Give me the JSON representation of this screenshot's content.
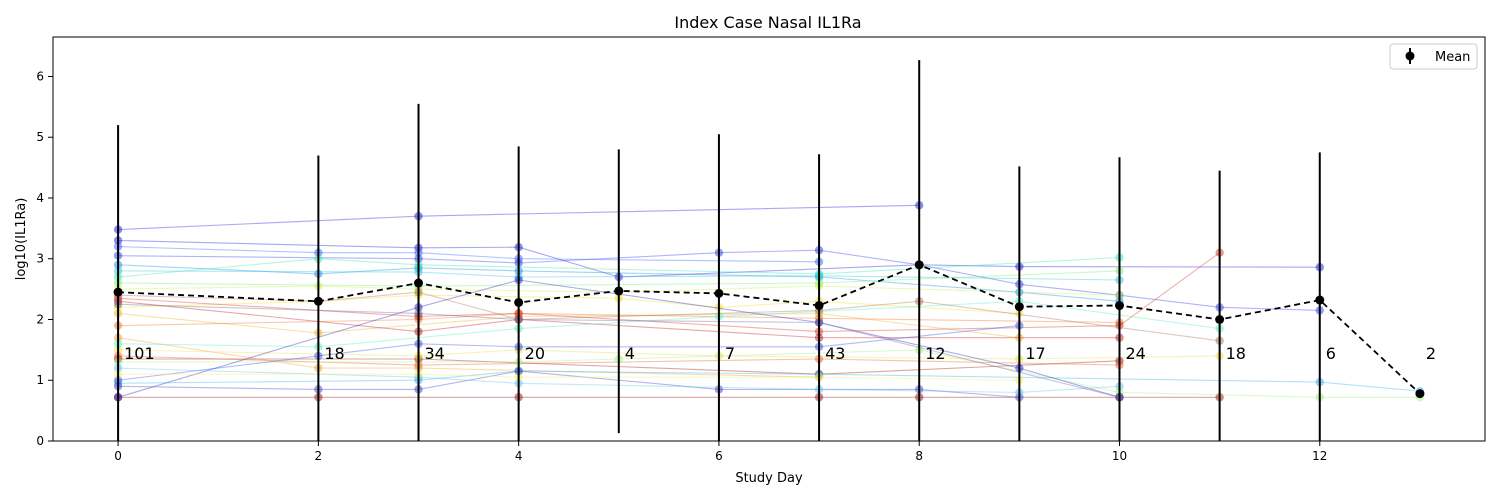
{
  "chart_data": {
    "type": "line",
    "title": "Index Case Nasal IL1Ra",
    "xlabel": "Study Day",
    "ylabel": "log10(IL1Ra)",
    "xlim": [
      -0.65,
      13.65
    ],
    "ylim": [
      0,
      6.65
    ],
    "x_ticks": [
      0,
      2,
      4,
      6,
      8,
      10,
      12
    ],
    "y_ticks": [
      0,
      1,
      2,
      3,
      4,
      5,
      6
    ],
    "grid": false,
    "legend": {
      "placement": "top-right",
      "entries": [
        "Mean"
      ]
    },
    "mean_series": {
      "name": "Mean",
      "color": "#000000",
      "line_style": "dashed",
      "points": [
        {
          "x": 0,
          "y": 2.45,
          "lo": 0.0,
          "hi": 5.2,
          "n": "101"
        },
        {
          "x": 2,
          "y": 2.3,
          "lo": 0.0,
          "hi": 4.7,
          "n": "18"
        },
        {
          "x": 3,
          "y": 2.6,
          "lo": 0.0,
          "hi": 5.55,
          "n": "34"
        },
        {
          "x": 4,
          "y": 2.28,
          "lo": 0.0,
          "hi": 4.85,
          "n": "20"
        },
        {
          "x": 5,
          "y": 2.47,
          "lo": 0.13,
          "hi": 4.8,
          "n": "4"
        },
        {
          "x": 6,
          "y": 2.43,
          "lo": 0.0,
          "hi": 5.05,
          "n": "7"
        },
        {
          "x": 7,
          "y": 2.23,
          "lo": 0.0,
          "hi": 4.72,
          "n": "43"
        },
        {
          "x": 8,
          "y": 2.9,
          "lo": 0.0,
          "hi": 6.27,
          "n": "12"
        },
        {
          "x": 9,
          "y": 2.21,
          "lo": 0.0,
          "hi": 4.52,
          "n": "17"
        },
        {
          "x": 10,
          "y": 2.23,
          "lo": 0.0,
          "hi": 4.67,
          "n": "24"
        },
        {
          "x": 11,
          "y": 2.0,
          "lo": 0.0,
          "hi": 4.45,
          "n": "18"
        },
        {
          "x": 12,
          "y": 2.32,
          "lo": 0.0,
          "hi": 4.75,
          "n": "6"
        },
        {
          "x": 13,
          "y": 0.78,
          "lo": 0.78,
          "hi": 0.78,
          "n": "2"
        }
      ]
    },
    "subject_series": [
      {
        "color": "#1a1adf",
        "points": [
          [
            0,
            3.48
          ],
          [
            3,
            3.7
          ],
          [
            8,
            3.88
          ]
        ]
      },
      {
        "color": "#1a1adf",
        "points": [
          [
            0,
            3.3
          ],
          [
            3,
            3.18
          ],
          [
            4,
            3.19
          ],
          [
            5,
            2.7
          ],
          [
            8,
            2.9
          ],
          [
            9,
            2.87
          ],
          [
            12,
            2.86
          ]
        ]
      },
      {
        "color": "#2a3cf0",
        "points": [
          [
            0,
            3.05
          ],
          [
            3,
            3.0
          ],
          [
            4,
            2.93
          ],
          [
            6,
            3.1
          ],
          [
            7,
            3.14
          ],
          [
            8,
            2.9
          ],
          [
            9,
            2.58
          ],
          [
            10,
            2.4
          ],
          [
            11,
            2.2
          ],
          [
            12,
            2.15
          ]
        ]
      },
      {
        "color": "#3060ff",
        "points": [
          [
            0,
            3.2
          ],
          [
            2,
            3.1
          ],
          [
            3,
            3.1
          ],
          [
            4,
            3.0
          ],
          [
            7,
            2.95
          ]
        ]
      },
      {
        "color": "#0a8fe0",
        "points": [
          [
            0,
            2.9
          ],
          [
            2,
            2.75
          ],
          [
            3,
            2.85
          ],
          [
            4,
            2.8
          ],
          [
            7,
            2.7
          ],
          [
            9,
            2.45
          ],
          [
            10,
            2.3
          ]
        ]
      },
      {
        "color": "#25c8e0",
        "points": [
          [
            0,
            2.8
          ],
          [
            3,
            2.78
          ],
          [
            4,
            2.7
          ],
          [
            7,
            2.72
          ],
          [
            10,
            2.65
          ]
        ]
      },
      {
        "color": "#30e8b0",
        "points": [
          [
            0,
            2.7
          ],
          [
            2,
            3.0
          ],
          [
            3,
            2.9
          ],
          [
            7,
            2.75
          ],
          [
            10,
            3.02
          ]
        ]
      },
      {
        "color": "#70f070",
        "points": [
          [
            0,
            2.6
          ],
          [
            3,
            2.55
          ],
          [
            7,
            2.6
          ],
          [
            10,
            2.8
          ]
        ]
      },
      {
        "color": "#c8f050",
        "points": [
          [
            0,
            2.5
          ],
          [
            2,
            2.55
          ],
          [
            3,
            2.5
          ],
          [
            5,
            2.45
          ],
          [
            7,
            2.55
          ],
          [
            10,
            2.4
          ]
        ]
      },
      {
        "color": "#f0e020",
        "points": [
          [
            0,
            2.2
          ],
          [
            2,
            2.3
          ],
          [
            3,
            2.4
          ],
          [
            5,
            2.35
          ],
          [
            6,
            2.2
          ],
          [
            7,
            2.3
          ],
          [
            9,
            2.1
          ]
        ]
      },
      {
        "color": "#f0b020",
        "points": [
          [
            0,
            2.1
          ],
          [
            2,
            1.78
          ],
          [
            4,
            2.05
          ],
          [
            7,
            2.1
          ],
          [
            9,
            1.7
          ]
        ]
      },
      {
        "color": "#f07020",
        "points": [
          [
            0,
            1.9
          ],
          [
            3,
            2.0
          ],
          [
            4,
            2.1
          ],
          [
            7,
            2.02
          ],
          [
            10,
            1.95
          ]
        ]
      },
      {
        "color": "#e03020",
        "points": [
          [
            0,
            2.35
          ],
          [
            3,
            2.05
          ],
          [
            4,
            2.1
          ],
          [
            7,
            1.8
          ],
          [
            10,
            1.9
          ],
          [
            11,
            3.1
          ]
        ]
      },
      {
        "color": "#c01818",
        "points": [
          [
            0,
            2.3
          ],
          [
            3,
            1.8
          ],
          [
            4,
            2.0
          ],
          [
            7,
            1.7
          ],
          [
            10,
            1.7
          ]
        ]
      },
      {
        "color": "#a01010",
        "points": [
          [
            0,
            1.35
          ],
          [
            3,
            1.35
          ],
          [
            7,
            1.1
          ],
          [
            10,
            1.32
          ]
        ]
      },
      {
        "color": "#a01010",
        "points": [
          [
            0,
            0.72
          ],
          [
            2,
            0.72
          ],
          [
            4,
            0.72
          ],
          [
            7,
            0.72
          ],
          [
            8,
            0.72
          ],
          [
            10,
            0.72
          ],
          [
            11,
            0.72
          ]
        ]
      },
      {
        "color": "#f06020",
        "points": [
          [
            0,
            1.4
          ],
          [
            3,
            1.25
          ],
          [
            7,
            1.35
          ],
          [
            10,
            1.25
          ]
        ]
      },
      {
        "color": "#f0a030",
        "points": [
          [
            0,
            1.7
          ],
          [
            2,
            1.2
          ],
          [
            3,
            1.2
          ],
          [
            7,
            1.05
          ]
        ]
      },
      {
        "color": "#e8e040",
        "points": [
          [
            0,
            1.5
          ],
          [
            3,
            1.4
          ],
          [
            4,
            1.5
          ],
          [
            6,
            1.4
          ],
          [
            9,
            1.35
          ],
          [
            11,
            1.4
          ]
        ]
      },
      {
        "color": "#a0f080",
        "points": [
          [
            0,
            1.3
          ],
          [
            4,
            1.3
          ],
          [
            5,
            1.35
          ],
          [
            8,
            1.5
          ],
          [
            10,
            0.8
          ],
          [
            12,
            0.72
          ],
          [
            13,
            0.72
          ]
        ]
      },
      {
        "color": "#50f0c0",
        "points": [
          [
            0,
            1.6
          ],
          [
            2,
            1.55
          ],
          [
            4,
            1.85
          ],
          [
            6,
            2.05
          ],
          [
            9,
            2.3
          ],
          [
            11,
            1.85
          ]
        ]
      },
      {
        "color": "#30b0f0",
        "points": [
          [
            0,
            0.95
          ],
          [
            3,
            1.0
          ],
          [
            4,
            1.15
          ],
          [
            7,
            1.1
          ],
          [
            12,
            0.97
          ],
          [
            13,
            0.82
          ]
        ]
      },
      {
        "color": "#3050e8",
        "points": [
          [
            0,
            1.0
          ],
          [
            2,
            1.4
          ],
          [
            3,
            1.6
          ],
          [
            4,
            1.55
          ],
          [
            7,
            1.55
          ],
          [
            9,
            1.9
          ]
        ]
      },
      {
        "color": "#2020c8",
        "points": [
          [
            0,
            0.72
          ],
          [
            3,
            2.2
          ],
          [
            4,
            2.65
          ],
          [
            7,
            1.95
          ],
          [
            9,
            1.2
          ],
          [
            10,
            0.72
          ]
        ]
      },
      {
        "color": "#3a40d0",
        "points": [
          [
            0,
            0.9
          ],
          [
            2,
            0.85
          ],
          [
            3,
            0.85
          ],
          [
            4,
            1.15
          ],
          [
            6,
            0.85
          ],
          [
            8,
            0.85
          ],
          [
            9,
            0.72
          ]
        ]
      },
      {
        "color": "#60c0f0",
        "points": [
          [
            0,
            1.2
          ],
          [
            3,
            1.05
          ],
          [
            4,
            0.95
          ],
          [
            7,
            0.85
          ],
          [
            9,
            0.8
          ],
          [
            10,
            0.9
          ]
        ]
      },
      {
        "color": "#f0f060",
        "points": [
          [
            0,
            1.1
          ],
          [
            3,
            1.1
          ],
          [
            4,
            1.05
          ],
          [
            7,
            1.05
          ],
          [
            9,
            1.0
          ]
        ]
      },
      {
        "color": "#a87050",
        "points": [
          [
            0,
            2.4
          ],
          [
            2,
            2.3
          ],
          [
            3,
            2.45
          ],
          [
            4,
            2.0
          ],
          [
            7,
            2.15
          ],
          [
            8,
            2.3
          ],
          [
            11,
            1.65
          ]
        ]
      },
      {
        "color": "#7060a0",
        "points": [
          [
            0,
            2.25
          ],
          [
            3,
            2.1
          ],
          [
            4,
            2.0
          ],
          [
            7,
            1.95
          ],
          [
            10,
            0.72
          ]
        ]
      }
    ]
  }
}
